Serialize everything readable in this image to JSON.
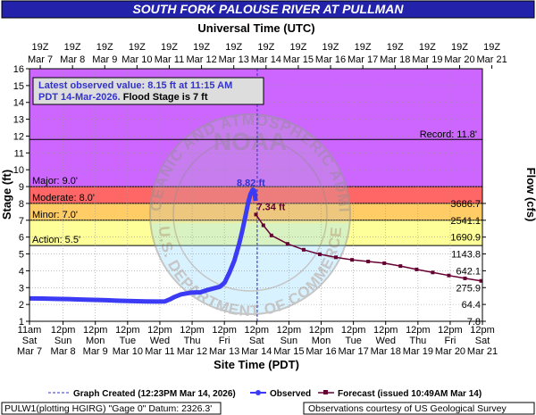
{
  "title": "SOUTH FORK PALOUSE RIVER AT PULLMAN",
  "top_axis_title": "Universal Time (UTC)",
  "bottom_axis_title": "Site Time (PDT)",
  "left_axis_title": "Stage (ft)",
  "right_axis_title": "Flow (cfs)",
  "top_ticks": [
    {
      "l1": "19Z",
      "l2": "Mar 7"
    },
    {
      "l1": "19Z",
      "l2": "Mar 8"
    },
    {
      "l1": "19Z",
      "l2": "Mar 9"
    },
    {
      "l1": "19Z",
      "l2": "Mar 10"
    },
    {
      "l1": "19Z",
      "l2": "Mar 11"
    },
    {
      "l1": "19Z",
      "l2": "Mar 12"
    },
    {
      "l1": "19Z",
      "l2": "Mar 13"
    },
    {
      "l1": "19Z",
      "l2": "Mar 14"
    },
    {
      "l1": "19Z",
      "l2": "Mar 15"
    },
    {
      "l1": "19Z",
      "l2": "Mar 16"
    },
    {
      "l1": "19Z",
      "l2": "Mar 17"
    },
    {
      "l1": "19Z",
      "l2": "Mar 18"
    },
    {
      "l1": "19Z",
      "l2": "Mar 19"
    },
    {
      "l1": "19Z",
      "l2": "Mar 20"
    },
    {
      "l1": "19Z",
      "l2": "Mar 21"
    }
  ],
  "bottom_ticks": [
    {
      "l1": "11am",
      "l2": "Sat",
      "l3": "Mar 7"
    },
    {
      "l1": "12pm",
      "l2": "Sun",
      "l3": "Mar 8"
    },
    {
      "l1": "12pm",
      "l2": "Mon",
      "l3": "Mar 9"
    },
    {
      "l1": "12pm",
      "l2": "Tue",
      "l3": "Mar 10"
    },
    {
      "l1": "12pm",
      "l2": "Wed",
      "l3": "Mar 11"
    },
    {
      "l1": "12pm",
      "l2": "Thu",
      "l3": "Mar 12"
    },
    {
      "l1": "12pm",
      "l2": "Fri",
      "l3": "Mar 13"
    },
    {
      "l1": "12pm",
      "l2": "Sat",
      "l3": "Mar 14"
    },
    {
      "l1": "12pm",
      "l2": "Sun",
      "l3": "Mar 15"
    },
    {
      "l1": "12pm",
      "l2": "Mon",
      "l3": "Mar 16"
    },
    {
      "l1": "12pm",
      "l2": "Tue",
      "l3": "Mar 17"
    },
    {
      "l1": "12pm",
      "l2": "Wed",
      "l3": "Mar 18"
    },
    {
      "l1": "12pm",
      "l2": "Thu",
      "l3": "Mar 19"
    },
    {
      "l1": "12pm",
      "l2": "Fri",
      "l3": "Mar 20"
    },
    {
      "l1": "12pm",
      "l2": "Sat",
      "l3": "Mar 21"
    }
  ],
  "flow_ticks": [
    {
      "stage": 2.0,
      "label": "64.4"
    },
    {
      "stage": 1.0,
      "label": "7.8"
    },
    {
      "stage": 3.0,
      "label": "275.9"
    },
    {
      "stage": 4.0,
      "label": "642.1"
    },
    {
      "stage": 5.0,
      "label": "1143.8"
    },
    {
      "stage": 6.0,
      "label": "1690.9"
    },
    {
      "stage": 7.0,
      "label": "2541.1"
    },
    {
      "stage": 8.0,
      "label": "3686.7"
    }
  ],
  "flood_categories": [
    {
      "name": "Action: 5.5'",
      "from": 5.5,
      "to": 7.0,
      "color": "#ffff99"
    },
    {
      "name": "Minor: 7.0'",
      "from": 7.0,
      "to": 8.0,
      "color": "#ffcc66"
    },
    {
      "name": "Moderate: 8.0'",
      "from": 8.0,
      "to": 9.0,
      "color": "#ff6666"
    },
    {
      "name": "Major: 9.0'",
      "from": 9.0,
      "to": 16.0,
      "color": "#cc66ff"
    }
  ],
  "record_label": "Record: 11.8'",
  "latest_observed_box": {
    "line1": "Latest observed value: 8.15 ft at 11:15 AM",
    "line2a": "PDT 14-Mar-2026.",
    "line2b": " Flood Stage is 7 ft"
  },
  "peak_observed_label": "8.82 ft",
  "peak_forecast_label": "7.34 ft",
  "legend": {
    "created": "Graph Created (12:23PM Mar 14, 2026)",
    "observed": "Observed",
    "forecast": "Forecast (issued 10:49AM Mar 14)"
  },
  "footer": {
    "left": "PULW1(plotting HGIRG) \"Gage 0\" Datum: 2326.3'",
    "right": "Observations courtesy of US Geological Survey"
  },
  "watermark": "NATIONAL OCEANIC AND ATMOSPHERIC ADMINISTRATION · U.S. DEPARTMENT OF COMMERCE",
  "colors": {
    "title_bar": "#2222aa",
    "observed": "#3b3bf5",
    "forecast": "#660033",
    "created_line": "#3333cc",
    "record_line": "#000000"
  },
  "chart_data": {
    "type": "line",
    "x_unit": "days from Mar 7 11:00 AM PDT",
    "x_range": [
      0,
      14.04
    ],
    "ylim": [
      1,
      16
    ],
    "grid": true,
    "flood_stage": 7.0,
    "record_stage": 11.8,
    "created_x": 7.06,
    "series": [
      {
        "name": "Observed",
        "points": [
          [
            0.0,
            2.36
          ],
          [
            0.4,
            2.35
          ],
          [
            0.8,
            2.33
          ],
          [
            1.2,
            2.32
          ],
          [
            1.6,
            2.29
          ],
          [
            2.0,
            2.27
          ],
          [
            2.4,
            2.25
          ],
          [
            2.8,
            2.22
          ],
          [
            3.2,
            2.2
          ],
          [
            3.6,
            2.18
          ],
          [
            4.0,
            2.17
          ],
          [
            4.2,
            2.18
          ],
          [
            4.35,
            2.3
          ],
          [
            4.5,
            2.45
          ],
          [
            4.7,
            2.6
          ],
          [
            5.0,
            2.7
          ],
          [
            5.3,
            2.72
          ],
          [
            5.5,
            2.85
          ],
          [
            5.7,
            2.95
          ],
          [
            5.9,
            3.05
          ],
          [
            6.05,
            3.3
          ],
          [
            6.2,
            3.9
          ],
          [
            6.35,
            4.6
          ],
          [
            6.5,
            5.6
          ],
          [
            6.6,
            6.4
          ],
          [
            6.7,
            7.3
          ],
          [
            6.78,
            8.05
          ],
          [
            6.85,
            8.55
          ],
          [
            6.92,
            8.82
          ],
          [
            6.97,
            8.75
          ],
          [
            7.01,
            8.15
          ]
        ]
      },
      {
        "name": "Forecast",
        "points": [
          [
            7.02,
            7.34
          ],
          [
            7.25,
            6.7
          ],
          [
            7.5,
            6.1
          ],
          [
            8.0,
            5.6
          ],
          [
            8.5,
            5.25
          ],
          [
            9.0,
            4.98
          ],
          [
            9.5,
            4.8
          ],
          [
            10.0,
            4.65
          ],
          [
            10.5,
            4.55
          ],
          [
            11.0,
            4.45
          ],
          [
            11.5,
            4.28
          ],
          [
            12.0,
            4.08
          ],
          [
            12.5,
            3.9
          ],
          [
            13.0,
            3.72
          ],
          [
            13.5,
            3.55
          ],
          [
            14.0,
            3.4
          ]
        ]
      }
    ]
  }
}
